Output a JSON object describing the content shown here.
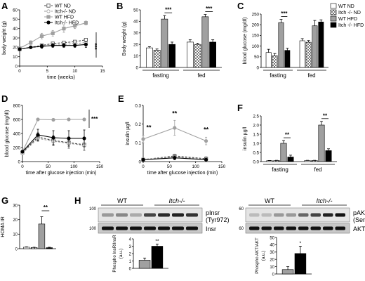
{
  "figure": {
    "panel_letters": [
      "A",
      "B",
      "C",
      "D",
      "E",
      "F",
      "G",
      "H"
    ]
  },
  "legend": {
    "a": [
      "WT ND",
      "Itch-/- ND",
      "WT HFD",
      "Itch-/- HFD"
    ],
    "c": [
      "WT ND",
      "Itch -/- ND",
      "WT HFD",
      "Itch -/- HFD"
    ]
  },
  "chart_data": [
    {
      "panel": "A",
      "type": "line",
      "xlabel": "time (weeks)",
      "ylabel": "body weight (g)",
      "xlim": [
        0,
        15
      ],
      "ylim": [
        0,
        60
      ],
      "xticks": [
        0,
        5,
        10,
        15
      ],
      "yticks": [
        0,
        10,
        20,
        30,
        40,
        50,
        60
      ],
      "significance": "***",
      "series": [
        {
          "name": "WT ND",
          "x": [
            0,
            4,
            6,
            8,
            10,
            12
          ],
          "y": [
            18,
            22,
            24,
            25,
            26,
            28
          ],
          "color": "#444444",
          "dashed": true,
          "marker": "open-square"
        },
        {
          "name": "Itch-/- ND",
          "x": [
            0,
            4,
            6,
            8,
            10,
            12
          ],
          "y": [
            18,
            21,
            22,
            23,
            24,
            25
          ],
          "color": "#999999",
          "dashed": true,
          "marker": "open-circle"
        },
        {
          "name": "WT HFD",
          "x": [
            0,
            2,
            4,
            6,
            8,
            10,
            12
          ],
          "y": [
            19,
            25,
            32,
            35,
            40,
            43,
            46
          ],
          "color": "#a0a0a0",
          "dashed": false,
          "marker": "filled-square",
          "err": [
            1,
            2,
            3,
            3,
            4,
            3,
            2
          ]
        },
        {
          "name": "Itch-/- HFD",
          "x": [
            0,
            2,
            4,
            6,
            8,
            10,
            12
          ],
          "y": [
            18,
            20,
            21,
            22,
            22,
            22,
            23
          ],
          "color": "#000000",
          "dashed": false,
          "marker": "filled-circle",
          "err": [
            1,
            1,
            2,
            2,
            2,
            2,
            3
          ]
        }
      ]
    },
    {
      "panel": "B",
      "type": "bar",
      "ylabel": "Body weight (g)",
      "ylim": [
        0,
        50
      ],
      "yticks": [
        0,
        10,
        20,
        30,
        40,
        50
      ],
      "groups": [
        "fasting",
        "fed"
      ],
      "series": [
        {
          "name": "WT ND",
          "values": [
            17,
            22
          ],
          "err": [
            1,
            2
          ]
        },
        {
          "name": "Itch-/- ND",
          "values": [
            15,
            20
          ],
          "err": [
            1,
            1
          ]
        },
        {
          "name": "WT HFD",
          "values": [
            42,
            44
          ],
          "err": [
            3,
            2
          ]
        },
        {
          "name": "Itch-/- HFD",
          "values": [
            20,
            22
          ],
          "err": [
            2,
            2
          ]
        }
      ],
      "significance": [
        "***",
        "***"
      ]
    },
    {
      "panel": "C",
      "type": "bar",
      "ylabel": "blood glucose (mg/dl)",
      "ylim": [
        0,
        250
      ],
      "yticks": [
        0,
        50,
        100,
        150,
        200,
        250
      ],
      "groups": [
        "fasting",
        "fed"
      ],
      "series": [
        {
          "name": "WT ND",
          "values": [
            70,
            125
          ],
          "err": [
            15,
            10
          ]
        },
        {
          "name": "Itch -/- ND",
          "values": [
            55,
            118
          ],
          "err": [
            10,
            8
          ]
        },
        {
          "name": "WT HFD",
          "values": [
            210,
            195
          ],
          "err": [
            15,
            25
          ]
        },
        {
          "name": "Itch -/- HFD",
          "values": [
            80,
            213
          ],
          "err": [
            10,
            10
          ]
        }
      ],
      "significance": [
        "***",
        ""
      ]
    },
    {
      "panel": "D",
      "type": "line",
      "xlabel": "time after glucose injection (min)",
      "ylabel": "blood glucose (mg/dl)",
      "xlim": [
        0,
        150
      ],
      "ylim": [
        0,
        800
      ],
      "xticks": [
        0,
        50,
        100,
        150
      ],
      "yticks": [
        0,
        200,
        400,
        600,
        800
      ],
      "significance": "***",
      "series": [
        {
          "name": "WT HFD",
          "x": [
            0,
            30,
            60,
            90,
            120
          ],
          "y": [
            140,
            600,
            595,
            600,
            600
          ],
          "color": "#a0a0a0",
          "dashed": false,
          "marker": "filled-circle"
        },
        {
          "name": "WT ND",
          "x": [
            0,
            30,
            60,
            90,
            120
          ],
          "y": [
            130,
            350,
            300,
            270,
            240
          ],
          "color": "#444444",
          "dashed": true,
          "marker": "open-square",
          "err": [
            20,
            60,
            70,
            80,
            80
          ]
        },
        {
          "name": "Itch-/- ND",
          "x": [
            0,
            30,
            60,
            90,
            120
          ],
          "y": [
            120,
            330,
            290,
            260,
            230
          ],
          "color": "#999999",
          "dashed": true,
          "marker": "open-circle"
        },
        {
          "name": "Itch-/- HFD",
          "x": [
            0,
            30,
            60,
            90,
            120
          ],
          "y": [
            140,
            380,
            340,
            330,
            330
          ],
          "color": "#000000",
          "dashed": false,
          "marker": "filled-circle",
          "err": [
            20,
            80,
            100,
            110,
            120
          ]
        }
      ]
    },
    {
      "panel": "E",
      "type": "line",
      "xlabel": "time after glucose injection (min)",
      "ylabel": "insulin µg/l",
      "xlim": [
        0,
        150
      ],
      "ylim": [
        0,
        0.3
      ],
      "xticks": [
        0,
        50,
        100,
        150
      ],
      "yticks": [
        0,
        0.1,
        0.2,
        0.3
      ],
      "significance": [
        "**",
        "**",
        "**"
      ],
      "series": [
        {
          "name": "WT HFD",
          "x": [
            0,
            60,
            120
          ],
          "y": [
            0.12,
            0.18,
            0.11
          ],
          "color": "#a0a0a0",
          "dashed": false,
          "marker": "filled-circle",
          "err": [
            0.02,
            0.04,
            0.02
          ]
        },
        {
          "name": "WT ND",
          "x": [
            0,
            60,
            120
          ],
          "y": [
            0.01,
            0.03,
            0.015
          ],
          "color": "#444444",
          "dashed": true,
          "marker": "open-square",
          "err": [
            0.005,
            0.01,
            0.01
          ]
        },
        {
          "name": "Itch-/- ND",
          "x": [
            0,
            60,
            120
          ],
          "y": [
            0.012,
            0.025,
            0.012
          ],
          "color": "#999999",
          "dashed": true,
          "marker": "open-circle"
        },
        {
          "name": "Itch-/- HFD",
          "x": [
            0,
            60,
            120
          ],
          "y": [
            0.01,
            0.02,
            0.01
          ],
          "color": "#000000",
          "dashed": false,
          "marker": "filled-circle",
          "err": [
            0.005,
            0.01,
            0.005
          ]
        }
      ]
    },
    {
      "panel": "F",
      "type": "bar",
      "ylabel": "insulin µg/l",
      "ylim": [
        0,
        2.5
      ],
      "yticks": [
        0.0,
        0.5,
        1.0,
        1.5,
        2.0,
        2.5
      ],
      "groups": [
        "fasting",
        "fed"
      ],
      "series": [
        {
          "name": "WT ND",
          "values": [
            0.05,
            0.06
          ],
          "err": [
            0.01,
            0.01
          ]
        },
        {
          "name": "Itch-/- ND",
          "values": [
            0.06,
            0.06
          ],
          "err": [
            0.01,
            0.01
          ]
        },
        {
          "name": "WT HFD",
          "values": [
            1.0,
            2.0
          ],
          "err": [
            0.15,
            0.2
          ]
        },
        {
          "name": "Itch-/- HFD",
          "values": [
            0.25,
            0.6
          ],
          "err": [
            0.1,
            0.1
          ]
        }
      ],
      "significance": [
        "**",
        "**"
      ]
    },
    {
      "panel": "G",
      "type": "bar",
      "ylabel": "HOMA IR",
      "ylim": [
        0,
        30
      ],
      "yticks": [
        0,
        10,
        20,
        30
      ],
      "categories": [
        "WT ND",
        "Itch-/- ND",
        "WT HFD",
        "Itch-/- HFD"
      ],
      "values": [
        1.0,
        0.8,
        17,
        0.7
      ],
      "err": [
        0.3,
        0.2,
        5,
        0.3
      ],
      "significance": "**"
    },
    {
      "panel": "H-left",
      "type": "bar",
      "ylabel": "Phospho InsR/InsR (a.u.)",
      "ylim": [
        0,
        4
      ],
      "yticks": [
        0,
        1,
        2,
        3,
        4
      ],
      "categories": [
        "WT",
        "Itch-/-"
      ],
      "values": [
        1.1,
        3.0
      ],
      "err": [
        0.3,
        0.3
      ],
      "significance": "**"
    },
    {
      "panel": "H-right",
      "type": "bar",
      "ylabel": "Phospho AKT/AKT (a.u.)",
      "ylim": [
        0,
        50
      ],
      "yticks": [
        0,
        10,
        20,
        30,
        40,
        50
      ],
      "categories": [
        "WT",
        "Itch-/-"
      ],
      "values": [
        6,
        28
      ],
      "err": [
        4,
        10
      ],
      "significance": "*"
    }
  ],
  "blots": {
    "left": {
      "group_labels": [
        "WT",
        "Itch-/-"
      ],
      "band_labels": [
        "pInsr",
        "(Tyr972)",
        "Insr"
      ],
      "marker_labels": [
        "100",
        "100"
      ]
    },
    "right": {
      "group_labels": [
        "WT",
        "Itch-/-"
      ],
      "band_labels": [
        "pAKT",
        "(Ser473)",
        "AKT"
      ],
      "marker_labels": [
        "60",
        "60"
      ]
    }
  },
  "colors": {
    "wt_nd": "#ffffff",
    "itch_nd_pattern": "#888888",
    "wt_hfd": "#a0a0a0",
    "itch_hfd": "#000000"
  }
}
